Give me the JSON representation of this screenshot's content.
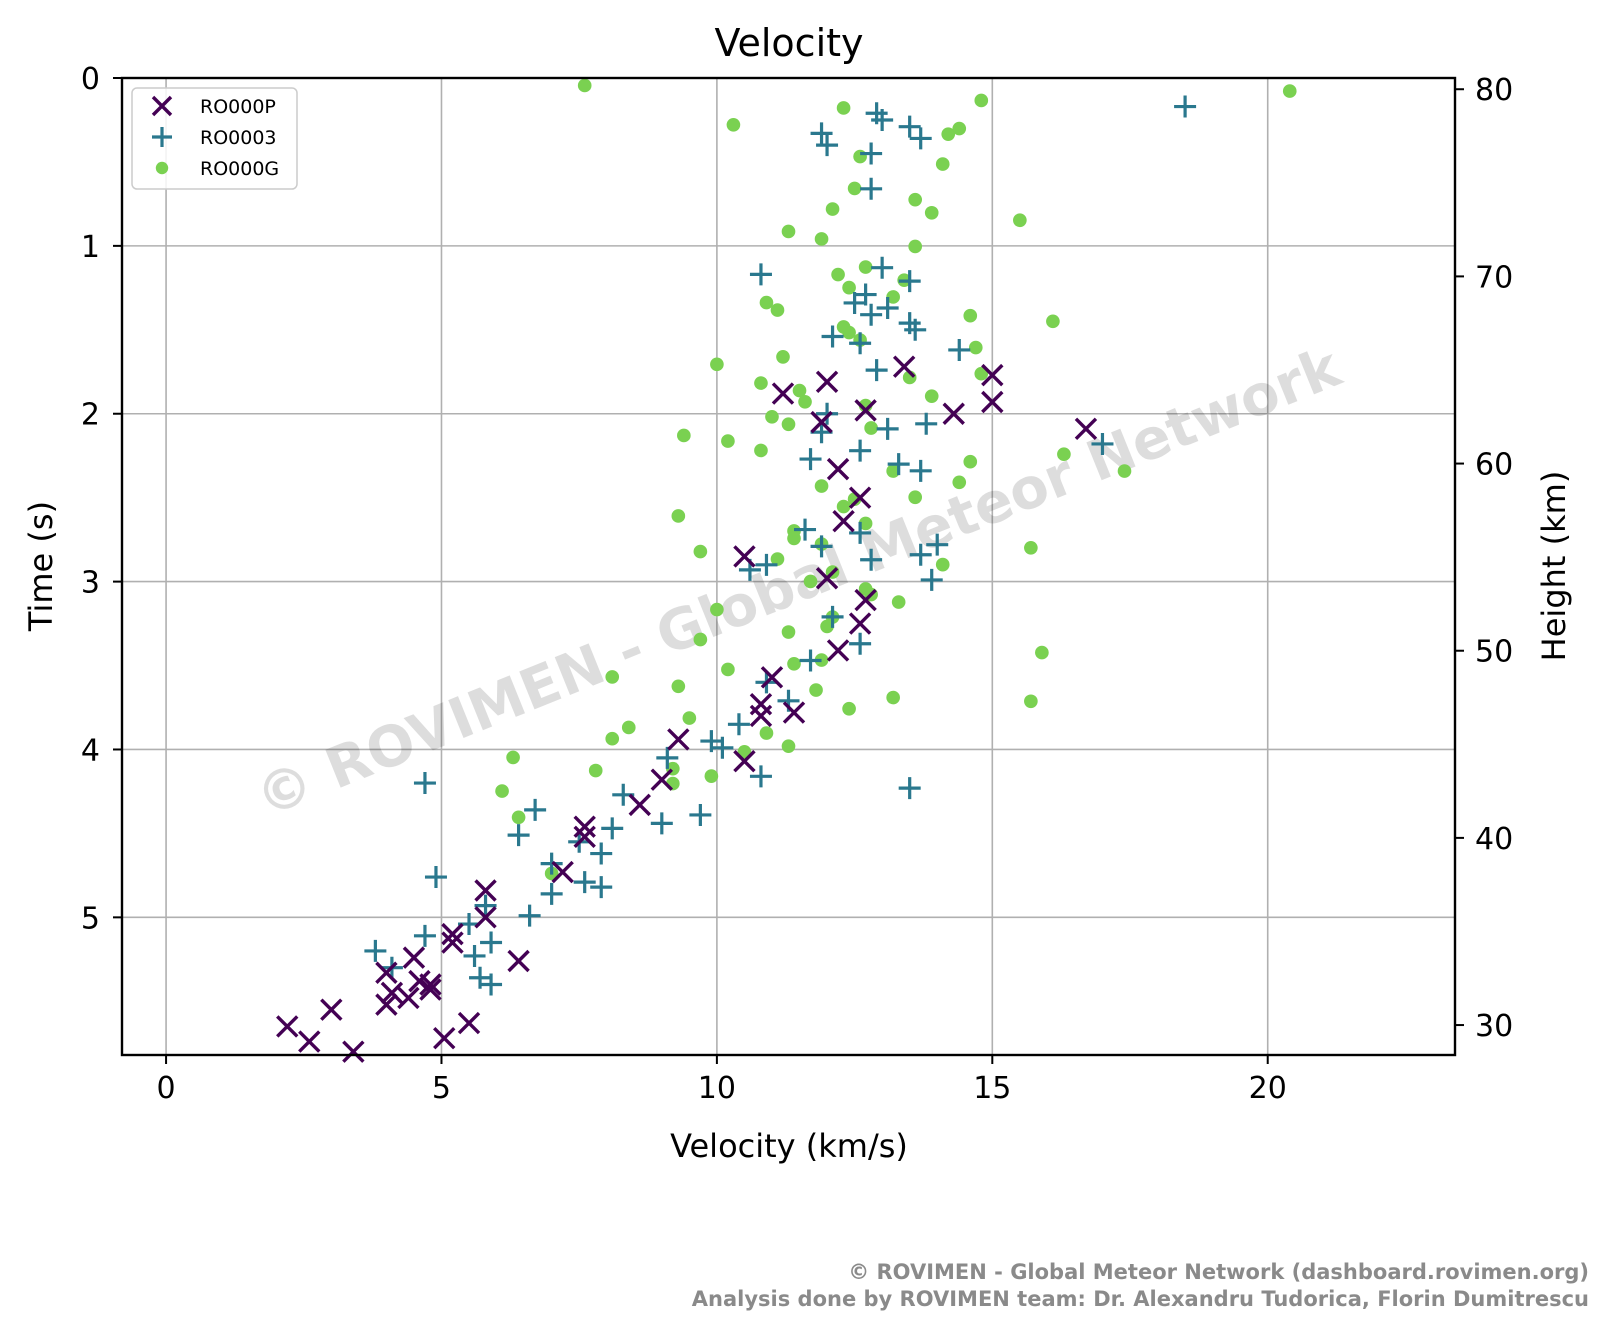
{
  "chart_data": {
    "type": "scatter",
    "title": "Velocity",
    "xlabel": "Velocity (km/s)",
    "ylabel": "Time (s)",
    "y2label": "Height (km)",
    "xlim": [
      -0.8,
      23.4
    ],
    "ylim": [
      5.82,
      0
    ],
    "y2lim": [
      28.4,
      80.6
    ],
    "x_ticks": [
      "0",
      "5",
      "10",
      "15",
      "20"
    ],
    "y_ticks": [
      "0",
      "1",
      "2",
      "3",
      "4",
      "5"
    ],
    "y2_ticks": [
      "30",
      "40",
      "50",
      "60",
      "70",
      "80"
    ],
    "grid": true,
    "legend_location": "top-left",
    "watermark": "© ROVIMEN - Global Meteor Network",
    "series": [
      {
        "name": "RO000P",
        "marker": "x",
        "color": "#440154",
        "points": [
          [
            2.2,
            5.65
          ],
          [
            2.6,
            5.74
          ],
          [
            3.0,
            5.55
          ],
          [
            3.4,
            5.8
          ],
          [
            4.0,
            5.52
          ],
          [
            4.1,
            5.45
          ],
          [
            4.0,
            5.33
          ],
          [
            4.4,
            5.48
          ],
          [
            4.6,
            5.38
          ],
          [
            4.5,
            5.24
          ],
          [
            4.8,
            5.4
          ],
          [
            4.8,
            5.43
          ],
          [
            5.2,
            5.15
          ],
          [
            5.2,
            5.1
          ],
          [
            5.05,
            5.72
          ],
          [
            5.5,
            5.63
          ],
          [
            5.8,
            5.0
          ],
          [
            5.8,
            4.84
          ],
          [
            6.4,
            5.26
          ],
          [
            7.2,
            4.73
          ],
          [
            7.6,
            4.46
          ],
          [
            7.6,
            4.52
          ],
          [
            8.6,
            4.33
          ],
          [
            9.0,
            4.18
          ],
          [
            9.3,
            3.94
          ],
          [
            10.5,
            4.07
          ],
          [
            10.8,
            3.8
          ],
          [
            10.8,
            3.73
          ],
          [
            11.0,
            3.57
          ],
          [
            11.4,
            3.78
          ],
          [
            10.5,
            2.85
          ],
          [
            12.2,
            3.41
          ],
          [
            12.6,
            3.25
          ],
          [
            12.7,
            3.11
          ],
          [
            12.0,
            2.98
          ],
          [
            12.3,
            2.64
          ],
          [
            12.6,
            2.5
          ],
          [
            12.2,
            2.33
          ],
          [
            11.9,
            2.05
          ],
          [
            12.7,
            1.98
          ],
          [
            11.2,
            1.88
          ],
          [
            12.0,
            1.81
          ],
          [
            13.4,
            1.72
          ],
          [
            14.3,
            2.0
          ],
          [
            15.0,
            1.77
          ],
          [
            15.0,
            1.93
          ],
          [
            16.7,
            2.09
          ]
        ]
      },
      {
        "name": "RO0003",
        "marker": "+",
        "color": "#2a788e",
        "points": [
          [
            3.8,
            5.2
          ],
          [
            4.1,
            5.3
          ],
          [
            4.7,
            5.11
          ],
          [
            4.7,
            4.2
          ],
          [
            4.9,
            4.76
          ],
          [
            5.5,
            5.04
          ],
          [
            5.6,
            5.23
          ],
          [
            5.7,
            5.36
          ],
          [
            5.9,
            5.4
          ],
          [
            5.9,
            5.15
          ],
          [
            5.8,
            4.93
          ],
          [
            6.4,
            4.51
          ],
          [
            6.7,
            4.36
          ],
          [
            6.6,
            4.99
          ],
          [
            7.0,
            4.86
          ],
          [
            7.0,
            4.68
          ],
          [
            7.5,
            4.55
          ],
          [
            7.6,
            4.79
          ],
          [
            7.9,
            4.82
          ],
          [
            7.9,
            4.62
          ],
          [
            8.3,
            4.27
          ],
          [
            8.1,
            4.47
          ],
          [
            9.0,
            4.44
          ],
          [
            9.1,
            4.05
          ],
          [
            9.7,
            4.39
          ],
          [
            9.9,
            3.95
          ],
          [
            10.1,
            3.99
          ],
          [
            10.4,
            3.85
          ],
          [
            10.6,
            2.93
          ],
          [
            10.9,
            2.9
          ],
          [
            10.8,
            4.16
          ],
          [
            10.9,
            3.6
          ],
          [
            11.3,
            3.71
          ],
          [
            11.7,
            3.47
          ],
          [
            11.6,
            2.69
          ],
          [
            11.9,
            2.79
          ],
          [
            12.1,
            3.21
          ],
          [
            12.6,
            3.37
          ],
          [
            12.6,
            2.71
          ],
          [
            12.8,
            2.87
          ],
          [
            13.7,
            2.84
          ],
          [
            13.9,
            2.99
          ],
          [
            14.0,
            2.78
          ],
          [
            13.5,
            4.23
          ],
          [
            11.7,
            2.27
          ],
          [
            11.9,
            2.11
          ],
          [
            12.0,
            2.0
          ],
          [
            12.6,
            2.22
          ],
          [
            13.1,
            2.09
          ],
          [
            13.3,
            2.3
          ],
          [
            13.7,
            2.34
          ],
          [
            13.8,
            2.06
          ],
          [
            12.9,
            1.74
          ],
          [
            12.1,
            1.54
          ],
          [
            12.6,
            1.58
          ],
          [
            12.5,
            1.34
          ],
          [
            12.7,
            1.29
          ],
          [
            12.8,
            1.41
          ],
          [
            13.1,
            1.37
          ],
          [
            13.5,
            1.46
          ],
          [
            13.6,
            1.5
          ],
          [
            14.4,
            1.62
          ],
          [
            10.8,
            1.17
          ],
          [
            13.0,
            1.13
          ],
          [
            13.5,
            1.21
          ],
          [
            11.9,
            0.33
          ],
          [
            12.0,
            0.4
          ],
          [
            12.8,
            0.45
          ],
          [
            12.8,
            0.66
          ],
          [
            12.9,
            0.21
          ],
          [
            13.0,
            0.25
          ],
          [
            13.5,
            0.29
          ],
          [
            13.7,
            0.36
          ],
          [
            17.0,
            2.18
          ],
          [
            18.5,
            0.17
          ]
        ]
      },
      {
        "name": "RO000G",
        "marker": "o",
        "color": "#7ad151",
        "points": [
          [
            7.6,
            80.2
          ],
          [
            10.3,
            78.1
          ],
          [
            12.3,
            79.0
          ],
          [
            14.8,
            79.4
          ],
          [
            20.4,
            79.9
          ],
          [
            14.2,
            77.6
          ],
          [
            14.4,
            77.9
          ],
          [
            12.6,
            76.4
          ],
          [
            14.1,
            76.0
          ],
          [
            12.5,
            74.7
          ],
          [
            12.1,
            73.6
          ],
          [
            13.6,
            74.1
          ],
          [
            13.9,
            73.4
          ],
          [
            11.3,
            72.4
          ],
          [
            11.9,
            72.0
          ],
          [
            13.6,
            71.6
          ],
          [
            15.5,
            73.0
          ],
          [
            12.2,
            70.1
          ],
          [
            12.7,
            70.5
          ],
          [
            13.4,
            69.8
          ],
          [
            12.4,
            69.4
          ],
          [
            13.2,
            68.9
          ],
          [
            10.9,
            68.6
          ],
          [
            11.1,
            68.2
          ],
          [
            12.3,
            67.3
          ],
          [
            12.4,
            67.0
          ],
          [
            12.6,
            66.6
          ],
          [
            14.6,
            67.9
          ],
          [
            16.1,
            67.6
          ],
          [
            10.0,
            65.3
          ],
          [
            11.2,
            65.7
          ],
          [
            14.8,
            64.8
          ],
          [
            14.7,
            66.2
          ],
          [
            13.5,
            64.6
          ],
          [
            10.8,
            64.3
          ],
          [
            11.5,
            63.9
          ],
          [
            11.6,
            63.3
          ],
          [
            12.7,
            63.1
          ],
          [
            13.9,
            63.6
          ],
          [
            11.0,
            62.5
          ],
          [
            11.3,
            62.1
          ],
          [
            9.4,
            61.5
          ],
          [
            10.2,
            61.2
          ],
          [
            10.8,
            60.7
          ],
          [
            12.8,
            61.9
          ],
          [
            14.6,
            60.1
          ],
          [
            16.3,
            60.5
          ],
          [
            13.2,
            59.6
          ],
          [
            14.4,
            59.0
          ],
          [
            17.4,
            59.6
          ],
          [
            11.9,
            58.8
          ],
          [
            13.6,
            58.2
          ],
          [
            12.5,
            58.1
          ],
          [
            12.3,
            57.7
          ],
          [
            9.3,
            57.2
          ],
          [
            12.7,
            56.8
          ],
          [
            11.4,
            56.4
          ],
          [
            11.4,
            56.0
          ],
          [
            11.9,
            55.7
          ],
          [
            9.7,
            55.3
          ],
          [
            11.1,
            54.9
          ],
          [
            14.1,
            54.6
          ],
          [
            15.7,
            55.5
          ],
          [
            12.1,
            54.2
          ],
          [
            11.7,
            53.7
          ],
          [
            12.7,
            53.3
          ],
          [
            12.8,
            53.0
          ],
          [
            13.3,
            52.6
          ],
          [
            10.0,
            52.2
          ],
          [
            12.1,
            51.8
          ],
          [
            12.0,
            51.3
          ],
          [
            11.3,
            51.0
          ],
          [
            9.7,
            50.6
          ],
          [
            15.9,
            49.9
          ],
          [
            11.9,
            49.5
          ],
          [
            11.4,
            49.3
          ],
          [
            10.2,
            49.0
          ],
          [
            8.1,
            48.6
          ],
          [
            9.3,
            48.1
          ],
          [
            11.8,
            47.9
          ],
          [
            13.2,
            47.5
          ],
          [
            15.7,
            47.3
          ],
          [
            12.4,
            46.9
          ],
          [
            9.5,
            46.4
          ],
          [
            8.4,
            45.9
          ],
          [
            8.1,
            45.3
          ],
          [
            10.9,
            45.6
          ],
          [
            11.3,
            44.9
          ],
          [
            10.5,
            44.6
          ],
          [
            6.3,
            44.3
          ],
          [
            9.2,
            43.7
          ],
          [
            7.8,
            43.6
          ],
          [
            9.9,
            43.3
          ],
          [
            9.2,
            42.9
          ],
          [
            6.1,
            42.5
          ],
          [
            6.4,
            41.1
          ],
          [
            7.0,
            38.1
          ]
        ]
      }
    ]
  },
  "footer": {
    "line1": "© ROVIMEN - Global Meteor Network  (dashboard.rovimen.org)",
    "line2": "Analysis done by ROVIMEN team:  Dr. Alexandru Tudorica, Florin Dumitrescu"
  }
}
